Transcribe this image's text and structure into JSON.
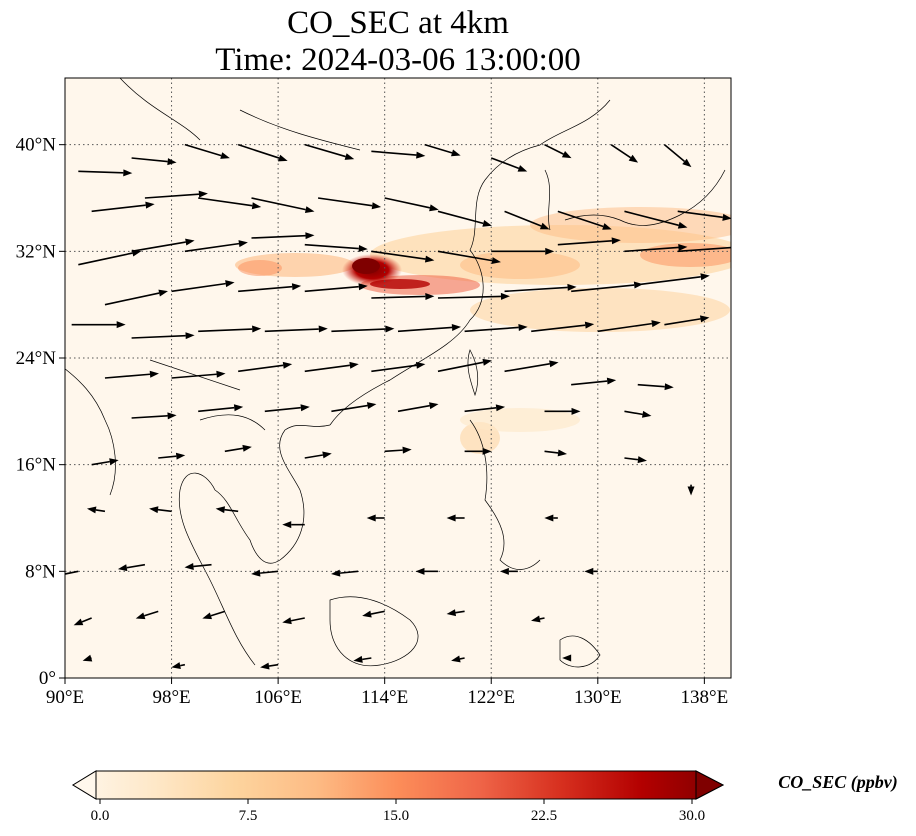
{
  "title": {
    "line1": "CO_SEC at 4km",
    "line2": "Time: 2024-03-06 13:00:00"
  },
  "map": {
    "extent": {
      "lon_min": 90,
      "lon_max": 140,
      "lat_min": 0,
      "lat_max": 45
    },
    "lon_ticks": [
      90,
      98,
      106,
      114,
      122,
      130,
      138
    ],
    "lat_ticks": [
      0,
      8,
      16,
      24,
      32,
      40
    ],
    "lon_tick_labels": [
      "90°E",
      "98°E",
      "106°E",
      "114°E",
      "122°E",
      "130°E",
      "138°E"
    ],
    "lat_tick_labels": [
      "0°",
      "8°N",
      "16°N",
      "24°N",
      "32°N",
      "40°N"
    ],
    "gridlines": true,
    "gridline_style": "dotted",
    "field": "CO_SEC",
    "plume_core": {
      "lon": 113.5,
      "lat": 30.5,
      "value_ppbv": 30.0
    }
  },
  "colorbar": {
    "title": "CO_SEC (ppbv)",
    "ticks": [
      "0.0",
      "7.5",
      "15.0",
      "22.5",
      "30.0"
    ],
    "tick_values": [
      0,
      7.5,
      15,
      22.5,
      30
    ],
    "min": 0,
    "max": 30,
    "extend": "both",
    "colormap": "OrRd",
    "colors": [
      "#fff7ec",
      "#fee8c8",
      "#fdd49e",
      "#fdbb84",
      "#fc8d59",
      "#ef6548",
      "#d7301f",
      "#b30000",
      "#7f0000"
    ]
  },
  "wind_vectors": [
    {
      "lon": 91,
      "lat": 38,
      "u": 6.0,
      "v": -0.2
    },
    {
      "lon": 95,
      "lat": 39,
      "u": 5.0,
      "v": -0.5
    },
    {
      "lon": 99,
      "lat": 40,
      "u": 5.0,
      "v": -1.5
    },
    {
      "lon": 103,
      "lat": 40,
      "u": 5.5,
      "v": -1.8
    },
    {
      "lon": 108,
      "lat": 40,
      "u": 5.5,
      "v": -1.6
    },
    {
      "lon": 113,
      "lat": 39.5,
      "u": 6.0,
      "v": -0.5
    },
    {
      "lon": 117,
      "lat": 40,
      "u": 4.0,
      "v": -1.2
    },
    {
      "lon": 122,
      "lat": 39,
      "u": 4.0,
      "v": -1.5
    },
    {
      "lon": 126,
      "lat": 40,
      "u": 3.0,
      "v": -1.5
    },
    {
      "lon": 131,
      "lat": 40,
      "u": 3.0,
      "v": -2.0
    },
    {
      "lon": 135,
      "lat": 40,
      "u": 3.0,
      "v": -2.5
    },
    {
      "lon": 92,
      "lat": 35,
      "u": 7.0,
      "v": 0.8
    },
    {
      "lon": 96,
      "lat": 36,
      "u": 7.0,
      "v": 0.5
    },
    {
      "lon": 100,
      "lat": 36,
      "u": 7.0,
      "v": -1.0
    },
    {
      "lon": 104,
      "lat": 36,
      "u": 7.0,
      "v": -1.5
    },
    {
      "lon": 109,
      "lat": 36,
      "u": 7.0,
      "v": -1.0
    },
    {
      "lon": 114,
      "lat": 36,
      "u": 6.0,
      "v": -1.3
    },
    {
      "lon": 118,
      "lat": 35,
      "u": 6.0,
      "v": -1.6
    },
    {
      "lon": 123,
      "lat": 35,
      "u": 5.0,
      "v": -2.0
    },
    {
      "lon": 127,
      "lat": 35,
      "u": 6.0,
      "v": -2.0
    },
    {
      "lon": 132,
      "lat": 35,
      "u": 7.0,
      "v": -1.8
    },
    {
      "lon": 136,
      "lat": 35,
      "u": 6.0,
      "v": -0.8
    },
    {
      "lon": 91,
      "lat": 31,
      "u": 7.0,
      "v": 1.5
    },
    {
      "lon": 95,
      "lat": 32,
      "u": 7.0,
      "v": 1.2
    },
    {
      "lon": 99,
      "lat": 32,
      "u": 7.0,
      "v": 1.0
    },
    {
      "lon": 104,
      "lat": 33,
      "u": 7.0,
      "v": 0.3
    },
    {
      "lon": 108,
      "lat": 32.5,
      "u": 7.0,
      "v": -0.5
    },
    {
      "lon": 113,
      "lat": 32,
      "u": 7.0,
      "v": -1.0
    },
    {
      "lon": 118,
      "lat": 32,
      "u": 7.0,
      "v": -1.2
    },
    {
      "lon": 122,
      "lat": 32,
      "u": 7.0,
      "v": 0.0
    },
    {
      "lon": 127,
      "lat": 32.5,
      "u": 7.0,
      "v": 0.5
    },
    {
      "lon": 132,
      "lat": 32,
      "u": 7.0,
      "v": 0.5
    },
    {
      "lon": 136,
      "lat": 32,
      "u": 7.0,
      "v": 0.5
    },
    {
      "lon": 93,
      "lat": 28,
      "u": 7.0,
      "v": 1.5
    },
    {
      "lon": 98,
      "lat": 29,
      "u": 7.0,
      "v": 1.0
    },
    {
      "lon": 103,
      "lat": 29,
      "u": 7.0,
      "v": 0.6
    },
    {
      "lon": 108,
      "lat": 29,
      "u": 7.0,
      "v": 0.6
    },
    {
      "lon": 113,
      "lat": 28.5,
      "u": 7.0,
      "v": 0.2
    },
    {
      "lon": 118,
      "lat": 28.5,
      "u": 8.0,
      "v": 0.2
    },
    {
      "lon": 123,
      "lat": 29,
      "u": 8.0,
      "v": 0.5
    },
    {
      "lon": 128,
      "lat": 29,
      "u": 8.0,
      "v": 0.8
    },
    {
      "lon": 133,
      "lat": 29.5,
      "u": 8.0,
      "v": 1.0
    },
    {
      "lon": 90.5,
      "lat": 26.5,
      "u": 6.0,
      "v": 0.0
    },
    {
      "lon": 95,
      "lat": 25.5,
      "u": 7.0,
      "v": 0.3
    },
    {
      "lon": 100,
      "lat": 26,
      "u": 7.0,
      "v": 0.3
    },
    {
      "lon": 105,
      "lat": 26,
      "u": 7.0,
      "v": 0.3
    },
    {
      "lon": 110,
      "lat": 26,
      "u": 7.0,
      "v": 0.3
    },
    {
      "lon": 115,
      "lat": 26,
      "u": 7.0,
      "v": 0.5
    },
    {
      "lon": 120,
      "lat": 26,
      "u": 7.0,
      "v": 0.5
    },
    {
      "lon": 125,
      "lat": 26,
      "u": 7.0,
      "v": 0.8
    },
    {
      "lon": 130,
      "lat": 26,
      "u": 7.0,
      "v": 1.0
    },
    {
      "lon": 135,
      "lat": 26.5,
      "u": 5.0,
      "v": 0.8
    },
    {
      "lon": 93,
      "lat": 22.5,
      "u": 6.0,
      "v": 0.5
    },
    {
      "lon": 98,
      "lat": 22.5,
      "u": 6.0,
      "v": 0.5
    },
    {
      "lon": 103,
      "lat": 23,
      "u": 6.0,
      "v": 0.8
    },
    {
      "lon": 108,
      "lat": 23,
      "u": 6.0,
      "v": 0.8
    },
    {
      "lon": 113,
      "lat": 23,
      "u": 6.0,
      "v": 0.8
    },
    {
      "lon": 118,
      "lat": 23,
      "u": 6.0,
      "v": 1.2
    },
    {
      "lon": 123,
      "lat": 23,
      "u": 6.0,
      "v": 1.0
    },
    {
      "lon": 128,
      "lat": 22,
      "u": 5.0,
      "v": 0.5
    },
    {
      "lon": 133,
      "lat": 22,
      "u": 4.0,
      "v": -0.3
    },
    {
      "lon": 95,
      "lat": 19.5,
      "u": 5.0,
      "v": 0.3
    },
    {
      "lon": 100,
      "lat": 20,
      "u": 5.0,
      "v": 0.5
    },
    {
      "lon": 105,
      "lat": 20,
      "u": 5.0,
      "v": 0.5
    },
    {
      "lon": 110,
      "lat": 20,
      "u": 5.0,
      "v": 0.8
    },
    {
      "lon": 115,
      "lat": 20,
      "u": 4.5,
      "v": 0.8
    },
    {
      "lon": 120,
      "lat": 20,
      "u": 4.5,
      "v": 0.5
    },
    {
      "lon": 126,
      "lat": 20,
      "u": 4.0,
      "v": 0.0
    },
    {
      "lon": 132,
      "lat": 20,
      "u": 3.0,
      "v": -0.5
    },
    {
      "lon": 92,
      "lat": 16,
      "u": 3.0,
      "v": 0.5
    },
    {
      "lon": 97,
      "lat": 16.5,
      "u": 3.0,
      "v": 0.3
    },
    {
      "lon": 102,
      "lat": 17,
      "u": 3.0,
      "v": 0.5
    },
    {
      "lon": 108,
      "lat": 16.5,
      "u": 3.0,
      "v": 0.5
    },
    {
      "lon": 114,
      "lat": 17,
      "u": 3.0,
      "v": 0.2
    },
    {
      "lon": 120,
      "lat": 17,
      "u": 3.0,
      "v": 0.0
    },
    {
      "lon": 126,
      "lat": 17,
      "u": 2.5,
      "v": -0.3
    },
    {
      "lon": 132,
      "lat": 16.5,
      "u": 2.5,
      "v": -0.3
    },
    {
      "lon": 137,
      "lat": 14.5,
      "u": 0.0,
      "v": -1.2
    },
    {
      "lon": 93,
      "lat": 12.5,
      "u": -2.0,
      "v": 0.3
    },
    {
      "lon": 98,
      "lat": 12.5,
      "u": -2.5,
      "v": 0.3
    },
    {
      "lon": 103,
      "lat": 12.5,
      "u": -2.5,
      "v": 0.3
    },
    {
      "lon": 108,
      "lat": 11.5,
      "u": -2.5,
      "v": 0.0
    },
    {
      "lon": 114,
      "lat": 12,
      "u": -2.0,
      "v": 0.0
    },
    {
      "lon": 120,
      "lat": 12,
      "u": -2.0,
      "v": 0.0
    },
    {
      "lon": 127,
      "lat": 12,
      "u": -1.5,
      "v": 0.0
    },
    {
      "lon": 91,
      "lat": 8,
      "u": -2.5,
      "v": -0.5
    },
    {
      "lon": 96,
      "lat": 8.5,
      "u": -3.0,
      "v": -0.5
    },
    {
      "lon": 101,
      "lat": 8.5,
      "u": -3.0,
      "v": -0.3
    },
    {
      "lon": 106,
      "lat": 8,
      "u": -3.0,
      "v": -0.3
    },
    {
      "lon": 112,
      "lat": 8,
      "u": -3.0,
      "v": -0.3
    },
    {
      "lon": 118,
      "lat": 8,
      "u": -2.5,
      "v": 0.0
    },
    {
      "lon": 124,
      "lat": 8,
      "u": -2.0,
      "v": 0.0
    },
    {
      "lon": 130,
      "lat": 8,
      "u": -1.5,
      "v": 0.0
    },
    {
      "lon": 92,
      "lat": 4.5,
      "u": -2.0,
      "v": -0.8
    },
    {
      "lon": 97,
      "lat": 5,
      "u": -2.5,
      "v": -0.8
    },
    {
      "lon": 102,
      "lat": 5,
      "u": -2.5,
      "v": -0.8
    },
    {
      "lon": 108,
      "lat": 4.5,
      "u": -2.5,
      "v": -0.5
    },
    {
      "lon": 114,
      "lat": 5,
      "u": -2.5,
      "v": -0.5
    },
    {
      "lon": 120,
      "lat": 5,
      "u": -2.0,
      "v": -0.3
    },
    {
      "lon": 126,
      "lat": 4.5,
      "u": -1.5,
      "v": -0.3
    },
    {
      "lon": 92,
      "lat": 1.5,
      "u": -1.0,
      "v": -0.3
    },
    {
      "lon": 99,
      "lat": 1,
      "u": -1.5,
      "v": -0.3
    },
    {
      "lon": 106,
      "lat": 1,
      "u": -2.0,
      "v": -0.3
    },
    {
      "lon": 113,
      "lat": 1.5,
      "u": -2.0,
      "v": -0.3
    },
    {
      "lon": 120,
      "lat": 1.5,
      "u": -1.5,
      "v": -0.3
    },
    {
      "lon": 128,
      "lat": 1.5,
      "u": -1.0,
      "v": 0.0
    }
  ]
}
